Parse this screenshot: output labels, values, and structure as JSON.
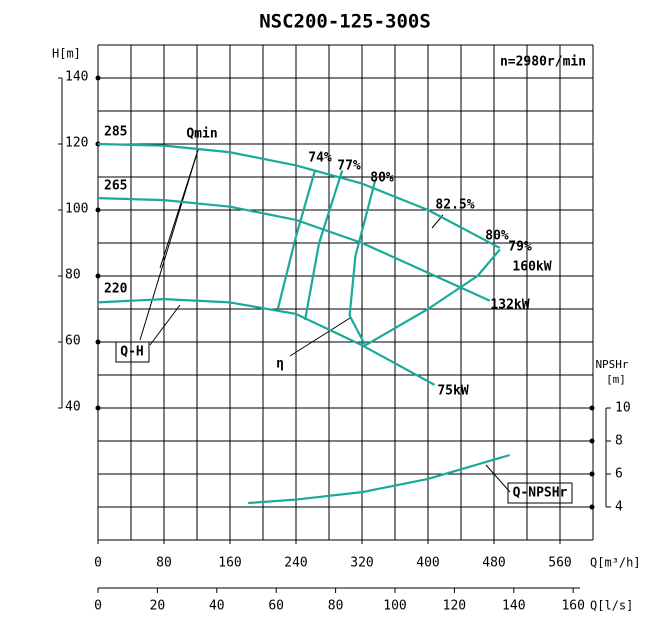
{
  "chart_data": {
    "type": "line",
    "title": "NSC200-125-300S",
    "subtitle": "n=2980r/min",
    "ylabel": "H[m]",
    "y2label": [
      "NPSHr",
      "[m]"
    ],
    "xlabel": "Q[m³/h]",
    "x2label": "Q[l/s]",
    "xlim": [
      0,
      600
    ],
    "xticks": [
      0,
      80,
      160,
      240,
      320,
      400,
      480,
      560
    ],
    "xgrid": [
      0,
      40,
      80,
      120,
      160,
      200,
      240,
      280,
      320,
      360,
      400,
      440,
      480,
      520,
      560,
      600
    ],
    "x2lim": [
      0,
      166.67
    ],
    "x2ticks": [
      0,
      20,
      40,
      60,
      80,
      100,
      120,
      140,
      160
    ],
    "ylim": [
      0,
      150
    ],
    "yticks": [
      40,
      60,
      80,
      100,
      120,
      140
    ],
    "ygrid": [
      0,
      10,
      20,
      30,
      40,
      50,
      60,
      70,
      80,
      90,
      100,
      110,
      120,
      130,
      140,
      150
    ],
    "y2lim": [
      2,
      32
    ],
    "y2ticks": [
      4,
      6,
      8,
      10
    ],
    "grid": true,
    "color": "#1aaa9a",
    "series": [
      {
        "name": "285",
        "x": [
          0,
          80,
          160,
          240,
          320,
          400,
          487
        ],
        "values": [
          120,
          119.5,
          117.5,
          113.5,
          108,
          100,
          88.5
        ]
      },
      {
        "name": "265",
        "x": [
          0,
          80,
          160,
          240,
          320,
          400,
          475
        ],
        "values": [
          103.6,
          103,
          101,
          97,
          90,
          81,
          72.5
        ]
      },
      {
        "name": "220",
        "x": [
          0,
          80,
          160,
          240,
          320,
          408
        ],
        "values": [
          72,
          73,
          72,
          68.5,
          59,
          47
        ]
      },
      {
        "name": "74%",
        "x": [
          263,
          240,
          218
        ],
        "values": [
          112,
          92,
          70
        ]
      },
      {
        "name": "77%",
        "x": [
          296,
          268,
          251
        ],
        "values": [
          112,
          90,
          66.7
        ]
      },
      {
        "name": "80%",
        "x": [
          336,
          312,
          305,
          324
        ],
        "values": [
          109,
          86,
          68,
          59
        ]
      },
      {
        "name": "82.5%",
        "x": [
          324,
          400,
          460,
          487
        ],
        "values": [
          59,
          70,
          80,
          88
        ]
      },
      {
        "name": "Q-NPSHr",
        "axis": "y2",
        "x": [
          182,
          240,
          320,
          400,
          499
        ],
        "values": [
          4.24,
          4.45,
          4.9,
          5.7,
          7.15
        ]
      }
    ],
    "annotations": [
      "Qmin",
      "80%",
      "79%",
      "160kW",
      "132kW",
      "75kW",
      "η",
      "Q-H",
      "Q-NPSHr"
    ]
  }
}
